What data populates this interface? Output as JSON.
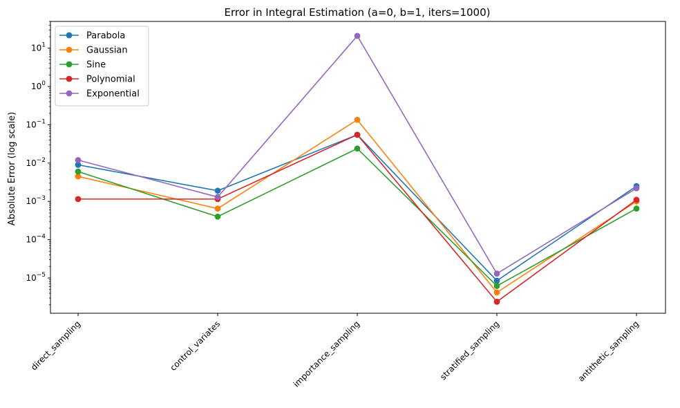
{
  "chart_data": {
    "type": "line",
    "title": "Error in Integral Estimation (a=0, b=1, iters=1000)",
    "xlabel": "",
    "ylabel": "Absolute Error (log scale)",
    "yscale": "log",
    "ylim": [
      1.2e-06,
      50
    ],
    "yticks": [
      {
        "value": 1e-05,
        "base": "10",
        "exp": "−5"
      },
      {
        "value": 0.0001,
        "base": "10",
        "exp": "−4"
      },
      {
        "value": 0.001,
        "base": "10",
        "exp": "−3"
      },
      {
        "value": 0.01,
        "base": "10",
        "exp": "−2"
      },
      {
        "value": 0.1,
        "base": "10",
        "exp": "−1"
      },
      {
        "value": 1,
        "base": "10",
        "exp": "0"
      },
      {
        "value": 10,
        "base": "10",
        "exp": "1"
      }
    ],
    "grid": false,
    "legend_position": "top-left",
    "categories": [
      "direct_sampling",
      "control_variates",
      "importance_sampling",
      "stratified_sampling",
      "antithetic_sampling"
    ],
    "series": [
      {
        "name": "Parabola",
        "color": "#1f77b4",
        "values": [
          0.009,
          0.0019,
          0.055,
          8.5e-06,
          0.0025
        ]
      },
      {
        "name": "Gaussian",
        "color": "#ff7f0e",
        "values": [
          0.0045,
          0.00065,
          0.135,
          4.2e-06,
          0.001
        ]
      },
      {
        "name": "Sine",
        "color": "#2ca02c",
        "values": [
          0.006,
          0.0004,
          0.024,
          6.2e-06,
          0.00065
        ]
      },
      {
        "name": "Polynomial",
        "color": "#d62728",
        "values": [
          0.00115,
          0.00115,
          0.055,
          2.4e-06,
          0.0011
        ]
      },
      {
        "name": "Exponential",
        "color": "#9467bd",
        "values": [
          0.012,
          0.0013,
          21,
          1.3e-05,
          0.0022
        ]
      }
    ]
  }
}
